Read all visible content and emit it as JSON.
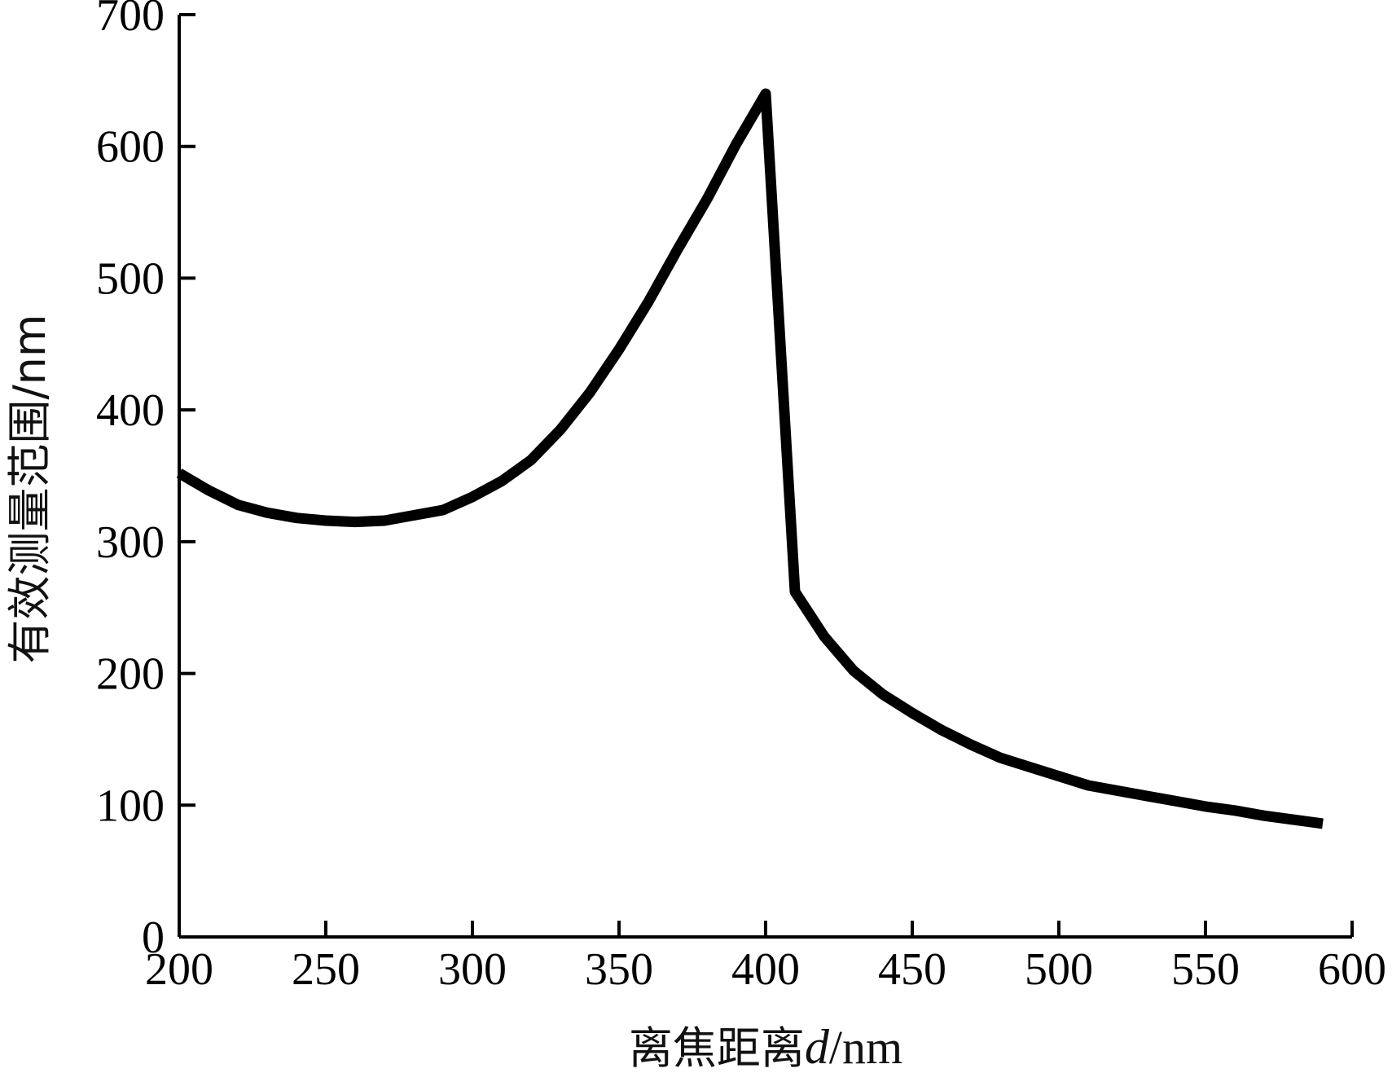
{
  "chart_data": {
    "type": "line",
    "title": "",
    "xlabel_prefix": "离焦距离",
    "xlabel_var": "d",
    "xlabel_unit": "/nm",
    "ylabel": "有效测量范围/nm",
    "xlim": [
      200,
      600
    ],
    "ylim": [
      0,
      700
    ],
    "xticks": [
      "200",
      "250",
      "300",
      "350",
      "400",
      "450",
      "500",
      "550",
      "600"
    ],
    "yticks": [
      "0",
      "100",
      "200",
      "300",
      "400",
      "500",
      "600",
      "700"
    ],
    "grid": false,
    "legend": false,
    "line_color": "#000000",
    "series": [
      {
        "x": [
          200,
          210,
          220,
          230,
          240,
          250,
          260,
          270,
          280,
          290,
          300,
          310,
          320,
          330,
          340,
          350,
          360,
          370,
          380,
          390,
          400,
          410,
          420,
          430,
          440,
          450,
          460,
          470,
          480,
          490,
          500,
          510,
          520,
          530,
          540,
          550,
          560,
          570,
          580,
          590
        ],
        "values": [
          352,
          339,
          328,
          322,
          318,
          316,
          315,
          316,
          320,
          324,
          334,
          346,
          362,
          385,
          413,
          446,
          482,
          522,
          560,
          602,
          640,
          262,
          228,
          202,
          184,
          170,
          157,
          146,
          136,
          129,
          122,
          115,
          111,
          107,
          103,
          99,
          96,
          92,
          89,
          86
        ]
      }
    ]
  }
}
